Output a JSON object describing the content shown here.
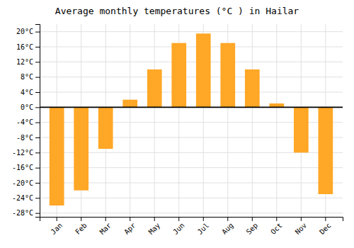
{
  "chart_data": {
    "type": "bar",
    "title": "Average monthly temperatures (°C ) in Hailar",
    "categories": [
      "Jan",
      "Feb",
      "Mar",
      "Apr",
      "May",
      "Jun",
      "Jul",
      "Aug",
      "Sep",
      "Oct",
      "Nov",
      "Dec"
    ],
    "values": [
      -26,
      -22,
      -11,
      2,
      10,
      17,
      19.5,
      17,
      10,
      1,
      -12,
      -23
    ],
    "color": "#FFA726",
    "ylim": [
      -29,
      22
    ],
    "yticks": [
      {
        "value": -28,
        "label": "-28°C"
      },
      {
        "value": -24,
        "label": "-24°C"
      },
      {
        "value": -20,
        "label": "-20°C"
      },
      {
        "value": -16,
        "label": "-16°C"
      },
      {
        "value": -12,
        "label": "-12°C"
      },
      {
        "value": -8,
        "label": "-8°C"
      },
      {
        "value": -4,
        "label": "-4°C"
      },
      {
        "value": 0,
        "label": "0°C"
      },
      {
        "value": 4,
        "label": "4°C"
      },
      {
        "value": 8,
        "label": "8°C"
      },
      {
        "value": 12,
        "label": "12°C"
      },
      {
        "value": 16,
        "label": "16°C"
      },
      {
        "value": 20,
        "label": "20°C"
      }
    ],
    "grid": true
  }
}
